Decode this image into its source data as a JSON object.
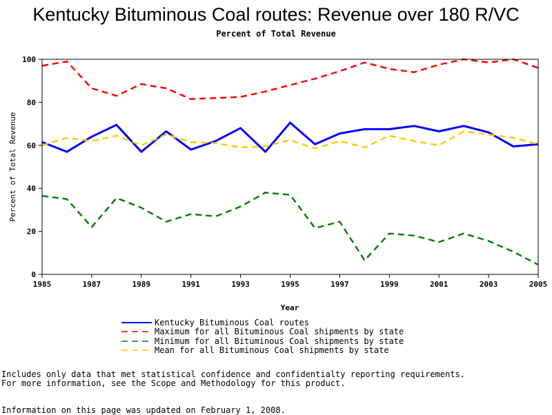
{
  "chart_data": {
    "type": "line",
    "title": "Kentucky Bituminous Coal routes: Revenue over 180 R/VC",
    "subtitle": "Percent of Total Revenue",
    "xlabel": "Year",
    "ylabel": "Percent of Total Revenue",
    "xlim": [
      1985,
      2005
    ],
    "ylim": [
      0,
      100
    ],
    "x_ticks": [
      "1985",
      "1987",
      "1989",
      "1991",
      "1993",
      "1995",
      "1997",
      "1999",
      "2001",
      "2003",
      "2005"
    ],
    "y_ticks": [
      "0",
      "20",
      "40",
      "60",
      "80",
      "100"
    ],
    "x": [
      1985,
      1986,
      1987,
      1988,
      1989,
      1990,
      1991,
      1992,
      1993,
      1994,
      1995,
      1996,
      1997,
      1998,
      1999,
      2000,
      2001,
      2002,
      2003,
      2004,
      2005
    ],
    "series": [
      {
        "name": "Kentucky Bituminous Coal routes",
        "color": "#0000ff",
        "style": "solid",
        "values": [
          61.5,
          57,
          64,
          69.5,
          57,
          66.5,
          58,
          62,
          68,
          57,
          70.5,
          60.5,
          65.5,
          67.5,
          67.5,
          69,
          66.5,
          69,
          66,
          59.5,
          60.5
        ]
      },
      {
        "name": "Maximum for all Bituminous Coal shipments by state",
        "color": "#ff0000",
        "style": "dashed",
        "values": [
          97,
          99,
          86.5,
          83,
          88.5,
          86.5,
          81.5,
          82,
          82.5,
          85,
          88,
          91,
          94.5,
          98.5,
          95.5,
          94,
          97.5,
          100,
          98.5,
          100,
          96
        ]
      },
      {
        "name": "Minimum for all Bituminous Coal shipments by state",
        "color": "#008000",
        "style": "dashed",
        "values": [
          36.5,
          35,
          22,
          35.5,
          31,
          24.5,
          28,
          27,
          31.5,
          38,
          37,
          21.5,
          24.5,
          6.5,
          19,
          18,
          15,
          19,
          15.5,
          10.5,
          4.5
        ]
      },
      {
        "name": "Mean for all Bituminous Coal shipments by state",
        "color": "#ffcc00",
        "style": "dashed",
        "values": [
          60,
          63.5,
          62,
          64.5,
          60,
          65,
          61.5,
          61,
          59,
          59.5,
          62.5,
          58.5,
          62,
          59,
          64.5,
          62,
          60,
          66.5,
          65,
          63.5,
          60.5
        ]
      }
    ]
  },
  "notes": {
    "line1": "Includes only data that met statistical confidence and confidentialty reporting requirements.",
    "line2": "For more information, see the Scope and Methodology for this product.",
    "line3": "Information on this page was updated on February 1, 2008."
  }
}
